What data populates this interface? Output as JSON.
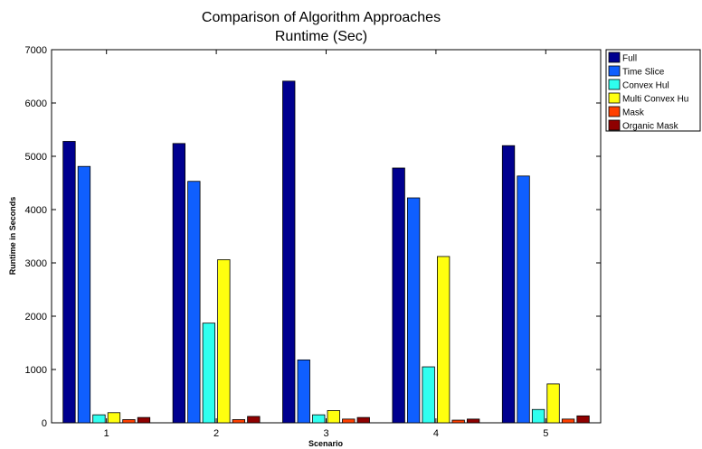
{
  "chart_data": {
    "type": "bar",
    "title": [
      "Comparison of Algorithm Approaches",
      "Runtime (Sec)"
    ],
    "xlabel": "Scenario",
    "ylabel": "Runtime in Seconds",
    "categories": [
      "1",
      "2",
      "3",
      "4",
      "5"
    ],
    "ylim": [
      0,
      7000
    ],
    "yticks": [
      "0",
      "1000",
      "2000",
      "3000",
      "4000",
      "5000",
      "6000",
      "7000"
    ],
    "grid": false,
    "legend_position": "outside-top-right",
    "series": [
      {
        "name": "Full",
        "color": "#00008f",
        "values": [
          5280,
          5240,
          6410,
          4780,
          5200
        ]
      },
      {
        "name": "Time Slice",
        "color": "#0f5fff",
        "values": [
          4810,
          4530,
          1180,
          4220,
          4630
        ]
      },
      {
        "name": "Convex Hul",
        "color": "#2fffef",
        "values": [
          150,
          1870,
          150,
          1050,
          250
        ]
      },
      {
        "name": "Multi Convex Hu",
        "color": "#ffff0f",
        "values": [
          190,
          3060,
          230,
          3120,
          730
        ]
      },
      {
        "name": "Mask",
        "color": "#ff3f00",
        "values": [
          60,
          60,
          70,
          50,
          70
        ]
      },
      {
        "name": "Organic Mask",
        "color": "#8f0000",
        "values": [
          100,
          120,
          100,
          70,
          130
        ]
      }
    ]
  }
}
